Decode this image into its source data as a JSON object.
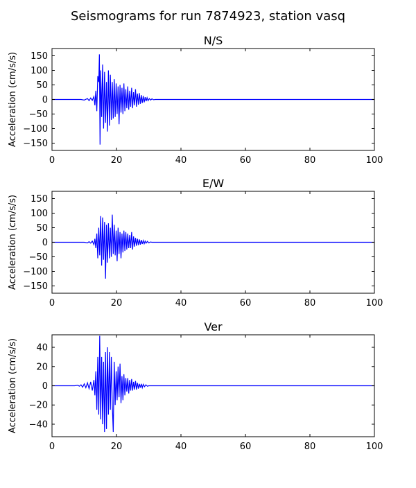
{
  "figure": {
    "suptitle": "Seismograms for run 7874923, station vasq"
  },
  "chart_data": [
    {
      "type": "line",
      "title": "N/S",
      "xlabel": "",
      "ylabel": "Acceleration (cm/s/s)",
      "xlim": [
        0,
        100
      ],
      "ylim": [
        -175,
        175
      ],
      "xticks": [
        0,
        20,
        40,
        60,
        80,
        100
      ],
      "yticks": [
        -150,
        -100,
        -50,
        0,
        50,
        100,
        150
      ],
      "grid": false,
      "legend": "none",
      "series": [
        {
          "color": "#0000ff",
          "x": [
            0,
            5,
            8,
            9,
            10,
            11,
            11.5,
            12,
            12.5,
            13,
            13.3,
            13.6,
            13.9,
            14.2,
            14.5,
            14.7,
            14.9,
            15.1,
            15.4,
            15.7,
            16.0,
            16.3,
            16.6,
            16.9,
            17.2,
            17.5,
            17.8,
            18.1,
            18.4,
            18.7,
            19.0,
            19.3,
            19.6,
            19.9,
            20.2,
            20.5,
            20.8,
            21.1,
            21.4,
            21.7,
            22.0,
            22.3,
            22.6,
            22.9,
            23.2,
            23.5,
            23.8,
            24.1,
            24.4,
            24.7,
            25.0,
            25.3,
            25.6,
            25.9,
            26.2,
            26.5,
            26.8,
            27.1,
            27.4,
            27.7,
            28.0,
            28.3,
            28.6,
            28.9,
            29.2,
            29.5,
            29.8,
            30.2,
            30.6,
            31.0,
            31.5,
            32,
            35,
            40,
            60,
            80,
            100
          ],
          "y": [
            0,
            0,
            0,
            0,
            -2,
            3,
            -4,
            5,
            -3,
            10,
            -20,
            30,
            -40,
            80,
            60,
            155,
            -155,
            100,
            -60,
            120,
            -100,
            95,
            -80,
            60,
            -110,
            100,
            -90,
            85,
            -70,
            60,
            -65,
            70,
            -60,
            55,
            -50,
            45,
            -85,
            50,
            -45,
            40,
            -50,
            55,
            -40,
            35,
            -30,
            45,
            -35,
            30,
            -25,
            40,
            -30,
            25,
            -20,
            35,
            -25,
            20,
            -18,
            22,
            -15,
            15,
            -12,
            12,
            -10,
            8,
            -6,
            6,
            -4,
            3,
            -2,
            2,
            -1,
            0,
            0,
            0,
            0,
            0,
            0
          ]
        }
      ]
    },
    {
      "type": "line",
      "title": "E/W",
      "xlabel": "",
      "ylabel": "Acceleration (cm/s/s)",
      "xlim": [
        0,
        100
      ],
      "ylim": [
        -175,
        175
      ],
      "xticks": [
        0,
        20,
        40,
        60,
        80,
        100
      ],
      "yticks": [
        -150,
        -100,
        -50,
        0,
        50,
        100,
        150
      ],
      "grid": false,
      "legend": "none",
      "series": [
        {
          "color": "#0000ff",
          "x": [
            0,
            5,
            8,
            10,
            11,
            11.5,
            12,
            12.5,
            13,
            13.3,
            13.6,
            13.9,
            14.2,
            14.5,
            14.8,
            15.1,
            15.4,
            15.7,
            16.0,
            16.3,
            16.6,
            16.9,
            17.2,
            17.5,
            17.8,
            18.1,
            18.4,
            18.7,
            19.0,
            19.3,
            19.6,
            19.9,
            20.2,
            20.5,
            20.8,
            21.1,
            21.4,
            21.7,
            22.0,
            22.3,
            22.6,
            22.9,
            23.2,
            23.5,
            23.8,
            24.1,
            24.4,
            24.7,
            25.0,
            25.3,
            25.6,
            25.9,
            26.2,
            26.5,
            26.8,
            27.1,
            27.4,
            27.7,
            28.0,
            28.3,
            28.6,
            28.9,
            29.2,
            29.6,
            30.0,
            30.5,
            31,
            32,
            35,
            40,
            60,
            80,
            100
          ],
          "y": [
            0,
            0,
            0,
            0,
            -2,
            2,
            -3,
            4,
            -8,
            12,
            -20,
            30,
            -55,
            50,
            -45,
            90,
            -80,
            85,
            -60,
            70,
            -125,
            60,
            -70,
            65,
            -55,
            50,
            -50,
            95,
            -40,
            60,
            -45,
            40,
            -65,
            50,
            -40,
            35,
            -55,
            30,
            -35,
            40,
            -30,
            35,
            -25,
            30,
            -20,
            25,
            -20,
            35,
            -25,
            20,
            -15,
            15,
            -12,
            12,
            -10,
            10,
            -8,
            8,
            -6,
            6,
            -5,
            4,
            -3,
            3,
            -2,
            1,
            0,
            0,
            0,
            0,
            0,
            0,
            0
          ]
        }
      ]
    },
    {
      "type": "line",
      "title": "Ver",
      "xlabel": "",
      "ylabel": "Acceleration (cm/s/s)",
      "xlim": [
        0,
        100
      ],
      "ylim": [
        -53,
        53
      ],
      "xticks": [
        0,
        20,
        40,
        60,
        80,
        100
      ],
      "yticks": [
        -40,
        -20,
        0,
        20,
        40
      ],
      "grid": false,
      "legend": "none",
      "series": [
        {
          "color": "#0000ff",
          "x": [
            0,
            5,
            7,
            8,
            8.5,
            9,
            9.5,
            10,
            10.5,
            11,
            11.5,
            12,
            12.5,
            13,
            13.3,
            13.6,
            13.9,
            14.2,
            14.5,
            14.8,
            15.1,
            15.4,
            15.7,
            16.0,
            16.3,
            16.6,
            16.9,
            17.2,
            17.5,
            17.8,
            18.1,
            18.4,
            18.7,
            19.0,
            19.3,
            19.6,
            19.9,
            20.2,
            20.5,
            20.8,
            21.1,
            21.4,
            21.7,
            22.0,
            22.3,
            22.6,
            22.9,
            23.2,
            23.5,
            23.8,
            24.1,
            24.4,
            24.7,
            25.0,
            25.3,
            25.6,
            25.9,
            26.2,
            26.5,
            26.8,
            27.1,
            27.4,
            27.7,
            28.0,
            28.3,
            28.7,
            29.1,
            29.6,
            30,
            31,
            35,
            40,
            60,
            80,
            100
          ],
          "y": [
            0,
            0,
            0,
            0.5,
            -0.5,
            1,
            -1.5,
            2,
            -2,
            3,
            -3,
            4,
            -5,
            6,
            -10,
            15,
            -25,
            30,
            -30,
            52,
            -35,
            30,
            -40,
            25,
            -48,
            35,
            -45,
            40,
            -30,
            35,
            -25,
            30,
            -20,
            -48,
            25,
            -20,
            15,
            -15,
            20,
            -12,
            23,
            -18,
            10,
            -15,
            12,
            -10,
            8,
            -6,
            8,
            -8,
            6,
            -5,
            7,
            -5,
            4,
            -4,
            5,
            -4,
            3,
            -3,
            2,
            -2,
            2,
            -2,
            1.5,
            -1,
            1,
            -0.5,
            0,
            0,
            0,
            0,
            0,
            0,
            0
          ]
        }
      ]
    }
  ]
}
